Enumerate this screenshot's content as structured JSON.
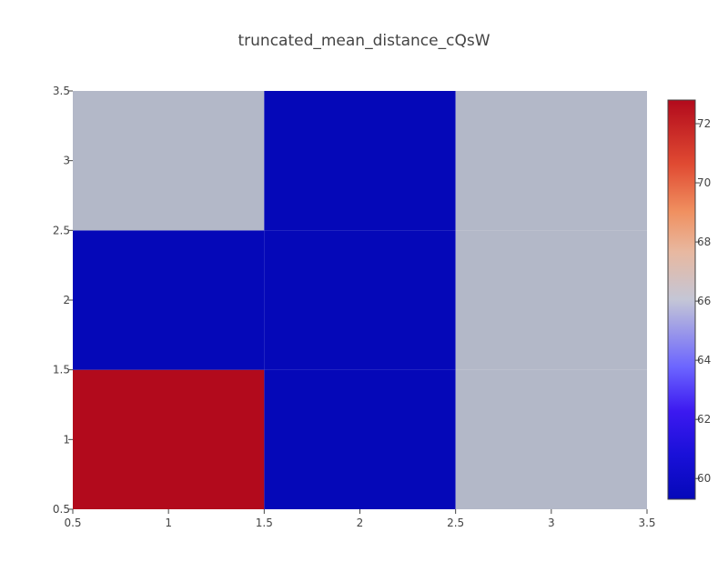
{
  "chart_data": {
    "type": "heatmap",
    "title": "truncated_mean_distance_cQsW",
    "xlabel": "",
    "ylabel": "",
    "x": [
      1,
      2,
      3
    ],
    "y": [
      1,
      2,
      3
    ],
    "z": [
      [
        72.8,
        59.3,
        66.3
      ],
      [
        59.3,
        59.3,
        66.3
      ],
      [
        66.3,
        59.3,
        66.3
      ]
    ],
    "xlim": [
      0.5,
      3.5
    ],
    "ylim": [
      0.5,
      3.5
    ],
    "x_ticks": [
      "0.5",
      "1",
      "1.5",
      "2",
      "2.5",
      "3",
      "3.5"
    ],
    "y_ticks": [
      "0.5",
      "1",
      "1.5",
      "2",
      "2.5",
      "3",
      "3.5"
    ],
    "colorscale": {
      "name": "RdBu (reversed)",
      "min": 59.3,
      "max": 72.8,
      "ticks": [
        "60",
        "62",
        "64",
        "66",
        "68",
        "70",
        "72"
      ],
      "colors": [
        "#0508b8",
        "#1910d8",
        "#3c19f0",
        "#6b64ff",
        "#c4daff",
        "#ffe8d4",
        "#ffaa85",
        "#ff5e3c",
        "#e01e1e",
        "#b20a1c"
      ]
    },
    "grid": false,
    "legend": "colorbar right"
  }
}
